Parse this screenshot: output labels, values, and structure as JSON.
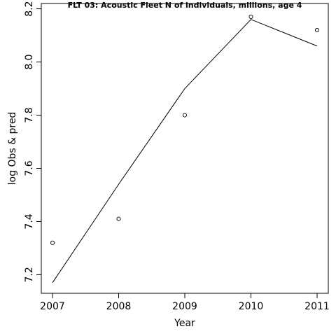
{
  "chart_data": {
    "type": "line",
    "title": "FLT 03: Acoustic Fleet  N of individuals, millions, age 4",
    "xlabel": "Year",
    "ylabel": "log Obs & pred",
    "x": [
      2007,
      2008,
      2009,
      2010,
      2011
    ],
    "xticks": [
      "2007",
      "2008",
      "2009",
      "2010",
      "2011"
    ],
    "yticks": [
      "7.2",
      "7.4",
      "7.6",
      "7.8",
      "8.0",
      "8.2"
    ],
    "xlim": [
      2007,
      2011
    ],
    "ylim": [
      7.13,
      8.22
    ],
    "series": [
      {
        "marker": "open-circle",
        "values": [
          7.32,
          7.41,
          7.8,
          8.17,
          8.12
        ]
      },
      {
        "marker": "line",
        "values": [
          7.17,
          7.54,
          7.9,
          8.16,
          8.06
        ]
      }
    ],
    "grid": false,
    "legend": "none"
  }
}
